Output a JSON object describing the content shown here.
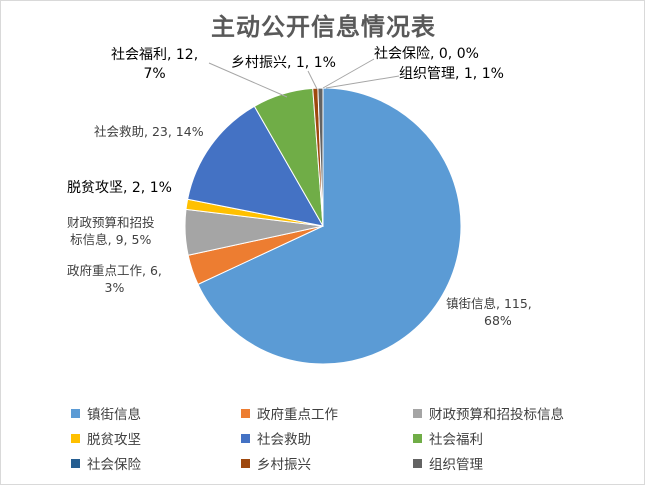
{
  "chart_data": {
    "type": "pie",
    "title": "主动公开信息情况表",
    "slices": [
      {
        "name": "镇街信息",
        "value": 115,
        "percent": "68%",
        "color": "#5b9bd5",
        "label_lines": [
          "镇街信息, 115,",
          "68%"
        ]
      },
      {
        "name": "政府重点工作",
        "value": 6,
        "percent": "3%",
        "color": "#ed7d31",
        "label_lines": [
          "政府重点工作, 6,",
          "3%"
        ]
      },
      {
        "name": "财政预算和招投标信息",
        "value": 9,
        "percent": "5%",
        "color": "#a5a5a5",
        "label_lines": [
          "财政预算和招投",
          "标信息, 9, 5%"
        ]
      },
      {
        "name": "脱贫攻坚",
        "value": 2,
        "percent": "1%",
        "color": "#ffc000",
        "label_lines": [
          "脱贫攻坚, 2, 1%"
        ]
      },
      {
        "name": "社会救助",
        "value": 23,
        "percent": "14%",
        "color": "#4472c4",
        "label_lines": [
          "社会救助, 23, 14%"
        ]
      },
      {
        "name": "社会福利",
        "value": 12,
        "percent": "7%",
        "color": "#70ad47",
        "label_lines": [
          "社会福利, 12,",
          "7%"
        ]
      },
      {
        "name": "社会保险",
        "value": 0,
        "percent": "0%",
        "color": "#255e91",
        "label_lines": [
          "社会保险, 0, 0%"
        ]
      },
      {
        "name": "乡村振兴",
        "value": 1,
        "percent": "1%",
        "color": "#9e480e",
        "label_lines": [
          "乡村振兴, 1, 1%"
        ]
      },
      {
        "name": "组织管理",
        "value": 1,
        "percent": "1%",
        "color": "#636363",
        "label_lines": [
          "组织管理, 1, 1%"
        ]
      }
    ],
    "legend": {
      "position": "bottom"
    }
  }
}
